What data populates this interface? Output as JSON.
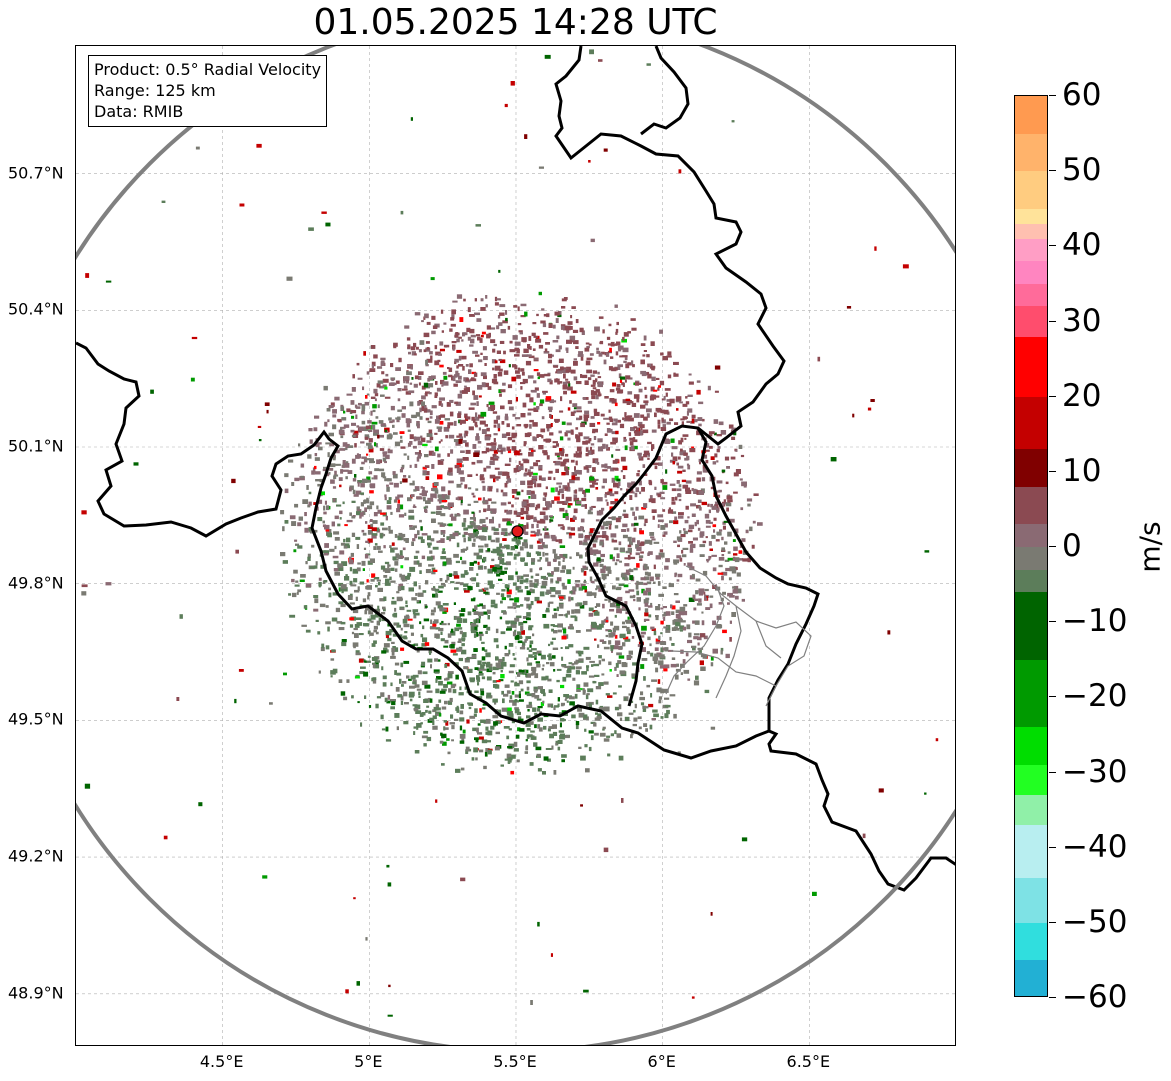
{
  "title": "01.05.2025 14:28 UTC",
  "info_box": {
    "product": "Product: 0.5° Radial Velocity",
    "range": "Range: 125 km",
    "data": "Data: RMIB"
  },
  "axes": {
    "lat_labels": [
      "50.7°N",
      "50.4°N",
      "50.1°N",
      "49.8°N",
      "49.5°N",
      "49.2°N",
      "48.9°N"
    ],
    "lat_values": [
      50.7,
      50.4,
      50.1,
      49.8,
      49.5,
      49.2,
      48.9
    ],
    "lon_labels": [
      "4.5°E",
      "5°E",
      "5.5°E",
      "6°E",
      "6.5°E"
    ],
    "lon_values": [
      4.5,
      5.0,
      5.5,
      6.0,
      6.5
    ],
    "lat_range": [
      48.8,
      50.98
    ],
    "lon_range": [
      4.0,
      7.0
    ]
  },
  "radar": {
    "lat": 49.915,
    "lon": 5.505,
    "range_km": 125,
    "marker_color": "#e31a1c"
  },
  "colorbar": {
    "unit": "m/s",
    "min": -60,
    "max": 60,
    "tick_values": [
      60,
      50,
      40,
      30,
      20,
      10,
      0,
      -10,
      -20,
      -30,
      -40,
      -50,
      -60
    ],
    "tick_labels": [
      "60",
      "50",
      "40",
      "30",
      "20",
      "10",
      "0",
      "−10",
      "−20",
      "−30",
      "−40",
      "−50",
      "−60"
    ],
    "stops": [
      {
        "v": 60,
        "c": "#ff9a50"
      },
      {
        "v": 55,
        "c": "#ffb36b"
      },
      {
        "v": 50,
        "c": "#ffcc80"
      },
      {
        "v": 45,
        "c": "#ffe39a"
      },
      {
        "v": 43,
        "c": "#ffc0b0"
      },
      {
        "v": 41,
        "c": "#ff9ec5"
      },
      {
        "v": 38,
        "c": "#ff85c0"
      },
      {
        "v": 35,
        "c": "#ff6b9a"
      },
      {
        "v": 32,
        "c": "#ff4d6d"
      },
      {
        "v": 28,
        "c": "#ff0000"
      },
      {
        "v": 20,
        "c": "#c40000"
      },
      {
        "v": 13,
        "c": "#800000"
      },
      {
        "v": 8,
        "c": "#8b4a52"
      },
      {
        "v": 3,
        "c": "#8a6a73"
      },
      {
        "v": 0,
        "c": "#7a7a72"
      },
      {
        "v": -3,
        "c": "#5c7d5a"
      },
      {
        "v": -6,
        "c": "#006400"
      },
      {
        "v": -15,
        "c": "#009a00"
      },
      {
        "v": -24,
        "c": "#00dd00"
      },
      {
        "v": -29,
        "c": "#22ff22"
      },
      {
        "v": -33,
        "c": "#90f0a8"
      },
      {
        "v": -37,
        "c": "#b8eef0"
      },
      {
        "v": -44,
        "c": "#7ee2e5"
      },
      {
        "v": -50,
        "c": "#30dede"
      },
      {
        "v": -55,
        "c": "#22b0d4"
      },
      {
        "v": -60,
        "c": "#1f78c1"
      }
    ]
  },
  "colors": {
    "border": "#000000",
    "range_ring": "#808080",
    "gridline": "#b0b0b0",
    "approaching_tint": "#5c7d5a",
    "receding_tint": "#8a6a73"
  }
}
